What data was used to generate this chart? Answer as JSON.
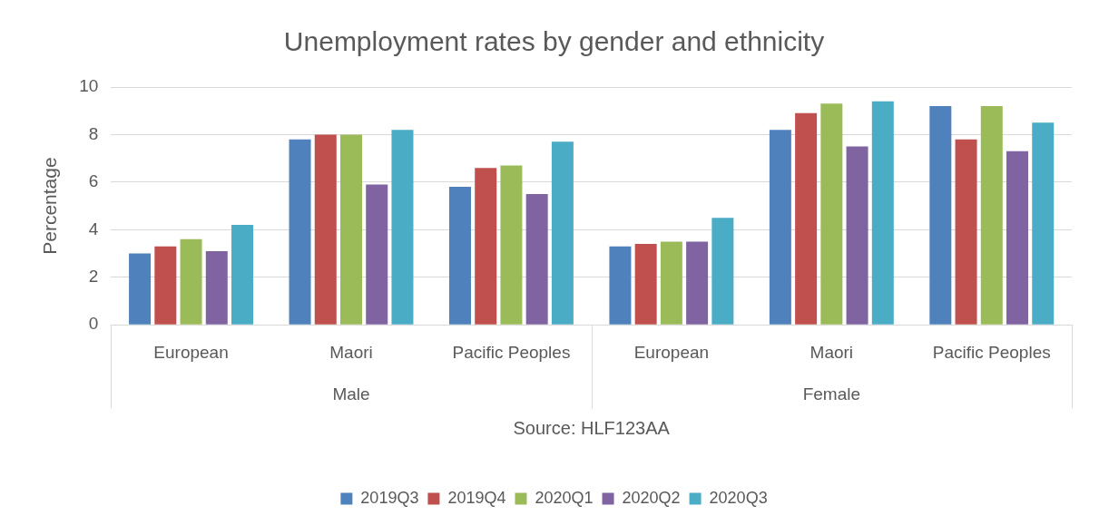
{
  "chart_data": {
    "type": "bar",
    "title": "Unemployment rates by gender and ethnicity",
    "ylabel": "Percentage",
    "categories": [
      "European",
      "Maori",
      "Pacific Peoples",
      "European",
      "Maori",
      "Pacific Peoples"
    ],
    "series": [
      {
        "name": "2019Q3",
        "color": "#4f81bd",
        "values": [
          3.0,
          7.8,
          5.8,
          3.3,
          8.2,
          9.2
        ]
      },
      {
        "name": "2019Q4",
        "color": "#c0504d",
        "values": [
          3.3,
          8.0,
          6.6,
          3.4,
          8.9,
          7.8
        ]
      },
      {
        "name": "2020Q1",
        "color": "#9bbb59",
        "values": [
          3.6,
          8.0,
          6.7,
          3.5,
          9.3,
          9.2
        ]
      },
      {
        "name": "2020Q2",
        "color": "#8064a2",
        "values": [
          3.1,
          5.9,
          5.5,
          3.5,
          7.5,
          7.3
        ]
      },
      {
        "name": "2020Q3",
        "color": "#4bacc6",
        "values": [
          4.2,
          8.2,
          7.7,
          4.5,
          9.4,
          8.5
        ]
      }
    ],
    "ylim": [
      0,
      10
    ],
    "yticks": [
      0,
      2,
      4,
      6,
      8,
      10
    ],
    "grid": "y",
    "legend": "bottom",
    "annotations": [
      "Male",
      "Female",
      "Source: HLF123AA"
    ]
  }
}
